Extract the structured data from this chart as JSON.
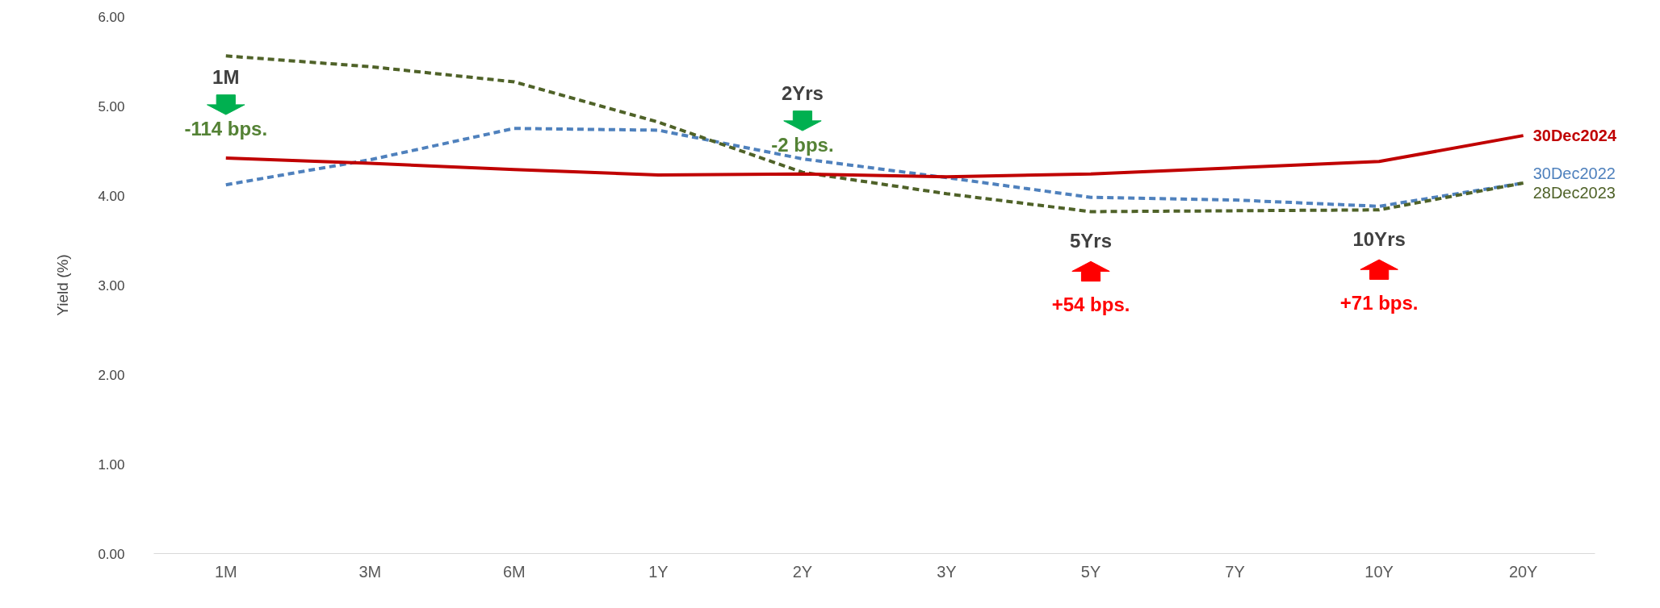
{
  "chart_data": {
    "type": "line",
    "ylabel": "Yield (%)",
    "categories": [
      "1M",
      "3M",
      "6M",
      "1Y",
      "2Y",
      "3Y",
      "5Y",
      "7Y",
      "10Y",
      "20Y"
    ],
    "series": [
      {
        "name": "30Dec2022",
        "color": "#4f81bd",
        "line_style": "dashed",
        "values": [
          4.12,
          4.4,
          4.75,
          4.73,
          4.41,
          4.2,
          3.98,
          3.95,
          3.88,
          4.14
        ]
      },
      {
        "name": "28Dec2023",
        "color": "#4f6228",
        "line_style": "dashed",
        "values": [
          5.56,
          5.44,
          5.27,
          4.82,
          4.26,
          4.02,
          3.82,
          3.83,
          3.84,
          4.14
        ]
      },
      {
        "name": "30Dec2024",
        "color": "#c00000",
        "line_style": "solid",
        "values": [
          4.42,
          4.36,
          4.29,
          4.23,
          4.24,
          4.21,
          4.24,
          4.31,
          4.38,
          4.67
        ]
      }
    ],
    "ylim": [
      0,
      6
    ],
    "yticks": [
      {
        "value": 0,
        "label": "0.00"
      },
      {
        "value": 1,
        "label": "1.00"
      },
      {
        "value": 2,
        "label": "2.00"
      },
      {
        "value": 3,
        "label": "3.00"
      },
      {
        "value": 4,
        "label": "4.00"
      },
      {
        "value": 5,
        "label": "5.00"
      },
      {
        "value": 6,
        "label": "6.00"
      }
    ],
    "grid": false,
    "marker": "none",
    "annotations": [
      "1M",
      "-114 bps.",
      "2Yrs",
      "-2 bps.",
      "5Yrs",
      "+54 bps.",
      "10Yrs",
      "+71 bps."
    ]
  }
}
